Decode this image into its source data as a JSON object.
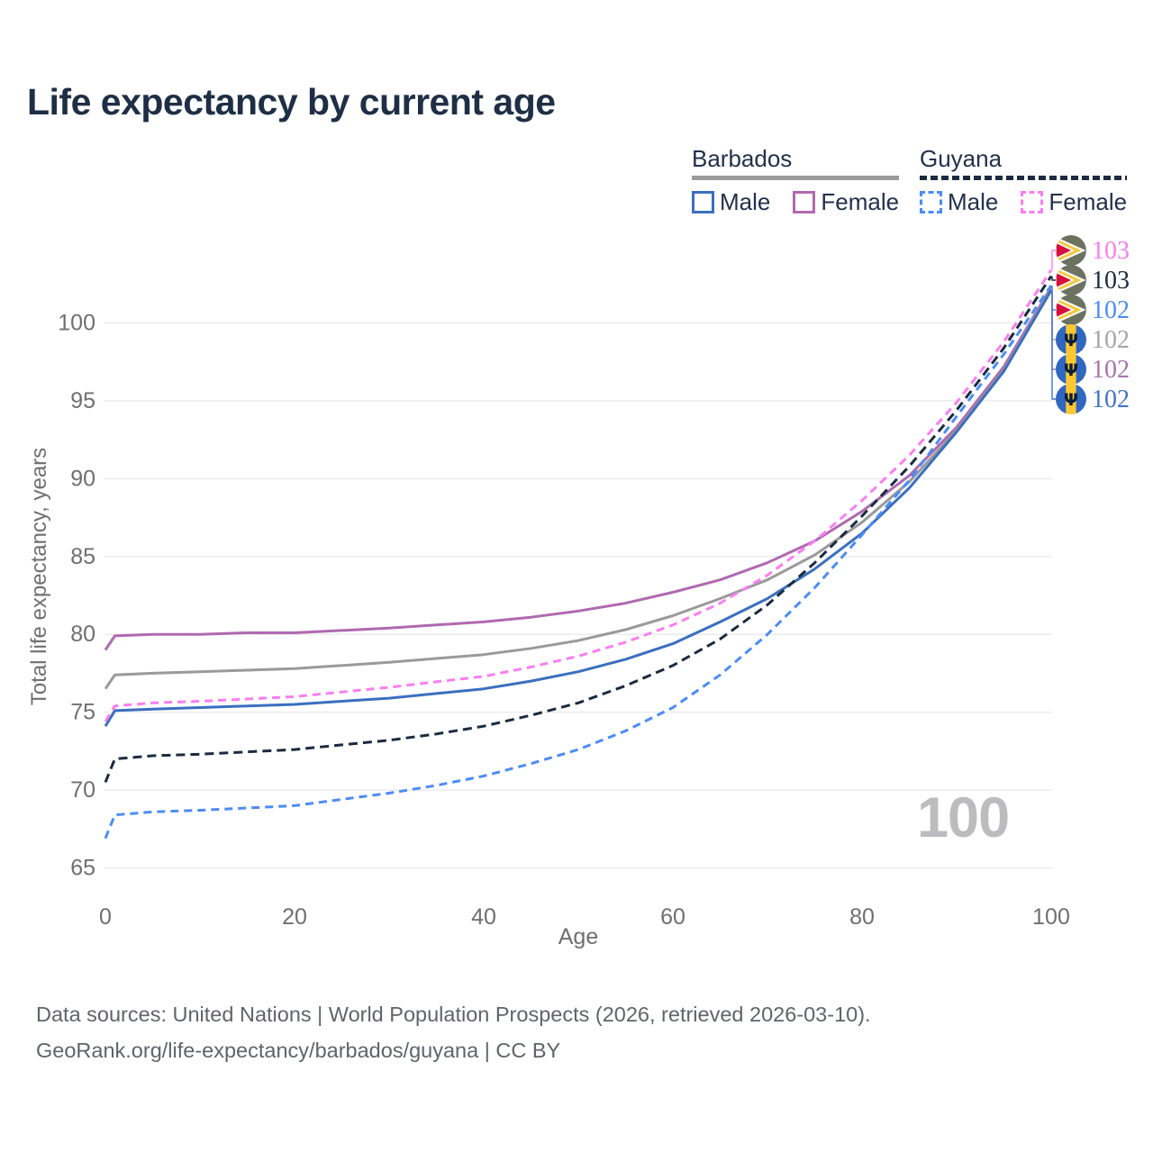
{
  "title": "Life expectancy by current age",
  "watermark": "100",
  "colors": {
    "barbados_male": "#3a6fc0",
    "barbados_female": "#b069b0",
    "barbados_all": "#9a9a9a",
    "guyana_male": "#4c8cf5",
    "guyana_female": "#fb7ef1",
    "guyana_all": "#1b2b40",
    "grid": "#ececec",
    "axis_text": "#6f6f6f",
    "title_text": "#1e2f45",
    "watermark_text": "#bcbcc0"
  },
  "legend": {
    "groups": [
      {
        "name": "Barbados",
        "underline_style": "solid",
        "underline_color": "#9a9a9a",
        "items": [
          {
            "label": "Male",
            "color": "#3a6fc0",
            "dashed": false
          },
          {
            "label": "Female",
            "color": "#b069b0",
            "dashed": false
          }
        ]
      },
      {
        "name": "Guyana",
        "underline_style": "dashed",
        "underline_color": "#1b2b40",
        "items": [
          {
            "label": "Male",
            "color": "#4c8cf5",
            "dashed": true
          },
          {
            "label": "Female",
            "color": "#fb7ef1",
            "dashed": true
          }
        ]
      }
    ]
  },
  "y_axis": {
    "label": "Total life expectancy, years",
    "ticks": [
      65,
      70,
      75,
      80,
      85,
      90,
      95,
      100
    ]
  },
  "x_axis": {
    "label": "Age",
    "ticks": [
      0,
      20,
      40,
      60,
      80,
      100
    ]
  },
  "end_labels": [
    {
      "value": "103",
      "flag": "guyana",
      "series": "guyana_female",
      "color": "#fb7ef1"
    },
    {
      "value": "103",
      "flag": "guyana",
      "series": "guyana_all",
      "color": "#1b2b40"
    },
    {
      "value": "102",
      "flag": "guyana",
      "series": "guyana_male",
      "color": "#4c8cf5"
    },
    {
      "value": "102",
      "flag": "barbados",
      "series": "barbados_all",
      "color": "#a5a5a5"
    },
    {
      "value": "102",
      "flag": "barbados",
      "series": "barbados_female",
      "color": "#a873ab"
    },
    {
      "value": "102",
      "flag": "barbados",
      "series": "barbados_male",
      "color": "#3f74c8"
    }
  ],
  "footer": {
    "line1": "Data sources: United Nations | World Population Prospects (2026, retrieved 2026-03-10).",
    "line2": "GeoRank.org/life-expectancy/barbados/guyana | CC BY"
  },
  "chart_data": {
    "type": "line",
    "title": "Life expectancy by current age",
    "xlabel": "Age",
    "ylabel": "Total life expectancy, years",
    "xlim": [
      0,
      100
    ],
    "ylim": [
      65,
      103.5
    ],
    "grid": "horizontal",
    "legend_position": "top-right",
    "x": [
      0,
      1,
      5,
      10,
      15,
      20,
      25,
      30,
      35,
      40,
      45,
      50,
      55,
      60,
      65,
      70,
      75,
      80,
      85,
      90,
      95,
      100
    ],
    "series": [
      {
        "id": "barbados_female",
        "name": "Barbados Female",
        "country": "Barbados",
        "sex": "Female",
        "style": "solid",
        "color": "#b069b0",
        "values": [
          79.0,
          79.9,
          80.0,
          80.0,
          80.1,
          80.1,
          80.25,
          80.4,
          80.6,
          80.8,
          81.1,
          81.5,
          82.0,
          82.7,
          83.5,
          84.6,
          86.0,
          87.9,
          90.2,
          93.3,
          97.2,
          102.3
        ]
      },
      {
        "id": "barbados_all",
        "name": "Barbados Both sexes",
        "country": "Barbados",
        "sex": "All",
        "style": "solid",
        "color": "#9a9a9a",
        "values": [
          76.5,
          77.4,
          77.5,
          77.6,
          77.7,
          77.8,
          78.0,
          78.2,
          78.45,
          78.7,
          79.1,
          79.6,
          80.3,
          81.2,
          82.3,
          83.5,
          85.1,
          87.2,
          89.8,
          93.1,
          97.0,
          102.2
        ]
      },
      {
        "id": "barbados_male",
        "name": "Barbados Male",
        "country": "Barbados",
        "sex": "Male",
        "style": "solid",
        "color": "#3a6fc0",
        "values": [
          74.1,
          75.1,
          75.2,
          75.3,
          75.4,
          75.5,
          75.7,
          75.9,
          76.2,
          76.5,
          77.0,
          77.6,
          78.4,
          79.4,
          80.8,
          82.3,
          84.2,
          86.5,
          89.4,
          93.0,
          96.9,
          102.1
        ]
      },
      {
        "id": "guyana_female",
        "name": "Guyana Female",
        "country": "Guyana",
        "sex": "Female",
        "style": "dashed",
        "color": "#fb7ef1",
        "values": [
          74.4,
          75.4,
          75.6,
          75.7,
          75.85,
          76.0,
          76.3,
          76.6,
          76.95,
          77.3,
          77.9,
          78.6,
          79.5,
          80.6,
          82.0,
          83.8,
          86.0,
          88.6,
          91.5,
          94.9,
          98.8,
          103.4
        ]
      },
      {
        "id": "guyana_all",
        "name": "Guyana Both sexes",
        "country": "Guyana",
        "sex": "All",
        "style": "dashed",
        "color": "#1b2b40",
        "values": [
          70.5,
          72.0,
          72.2,
          72.3,
          72.45,
          72.6,
          72.9,
          73.2,
          73.6,
          74.1,
          74.8,
          75.6,
          76.7,
          78.0,
          79.7,
          81.9,
          84.6,
          87.6,
          90.8,
          94.4,
          98.4,
          103.0
        ]
      },
      {
        "id": "guyana_male",
        "name": "Guyana Male",
        "country": "Guyana",
        "sex": "Male",
        "style": "dashed",
        "color": "#4c8cf5",
        "values": [
          66.9,
          68.4,
          68.6,
          68.7,
          68.85,
          69.0,
          69.4,
          69.8,
          70.3,
          70.9,
          71.7,
          72.6,
          73.8,
          75.3,
          77.4,
          80.0,
          83.0,
          86.4,
          89.9,
          94.0,
          98.0,
          102.4
        ]
      }
    ]
  }
}
